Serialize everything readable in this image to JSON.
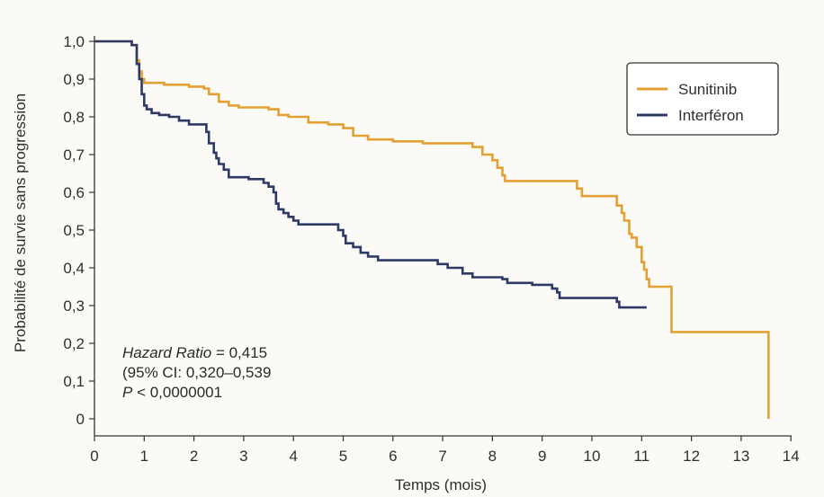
{
  "chart_data": {
    "type": "line",
    "xlabel": "Temps (mois)",
    "ylabel": "Probabilité de survie sans progression",
    "xlim": [
      0,
      14
    ],
    "ylim": [
      0,
      1
    ],
    "x_ticks": [
      0,
      1,
      2,
      3,
      4,
      5,
      6,
      7,
      8,
      9,
      10,
      11,
      12,
      13,
      14
    ],
    "x_tick_labels": [
      "0",
      "1",
      "2",
      "3",
      "4",
      "5",
      "6",
      "7",
      "8",
      "9",
      "10",
      "11",
      "12",
      "13",
      "14"
    ],
    "y_ticks": [
      0,
      0.1,
      0.2,
      0.3,
      0.4,
      0.5,
      0.6,
      0.7,
      0.8,
      0.9,
      1.0
    ],
    "y_tick_labels": [
      "0",
      "0,1",
      "0,2",
      "0,3",
      "0,4",
      "0,5",
      "0,6",
      "0,7",
      "0,8",
      "0,9",
      "1,0"
    ],
    "grid": false,
    "legend_position": "top-right",
    "series": [
      {
        "name": "Sunitinib",
        "color": "#e3a033",
        "step": true,
        "points": [
          [
            0,
            1.0
          ],
          [
            0.5,
            1.0
          ],
          [
            0.75,
            0.99
          ],
          [
            0.85,
            0.95
          ],
          [
            0.9,
            0.92
          ],
          [
            0.95,
            0.9
          ],
          [
            1.0,
            0.89
          ],
          [
            1.4,
            0.885
          ],
          [
            1.9,
            0.88
          ],
          [
            2.2,
            0.875
          ],
          [
            2.3,
            0.86
          ],
          [
            2.5,
            0.84
          ],
          [
            2.7,
            0.83
          ],
          [
            2.9,
            0.825
          ],
          [
            3.5,
            0.82
          ],
          [
            3.7,
            0.805
          ],
          [
            3.9,
            0.8
          ],
          [
            4.3,
            0.785
          ],
          [
            4.7,
            0.78
          ],
          [
            5.0,
            0.77
          ],
          [
            5.2,
            0.75
          ],
          [
            5.5,
            0.74
          ],
          [
            6.0,
            0.735
          ],
          [
            6.6,
            0.73
          ],
          [
            7.6,
            0.72
          ],
          [
            7.8,
            0.7
          ],
          [
            8.0,
            0.685
          ],
          [
            8.1,
            0.665
          ],
          [
            8.2,
            0.645
          ],
          [
            8.25,
            0.63
          ],
          [
            9.7,
            0.61
          ],
          [
            9.8,
            0.59
          ],
          [
            10.5,
            0.565
          ],
          [
            10.6,
            0.545
          ],
          [
            10.65,
            0.525
          ],
          [
            10.75,
            0.49
          ],
          [
            10.8,
            0.48
          ],
          [
            10.9,
            0.455
          ],
          [
            11.0,
            0.415
          ],
          [
            11.05,
            0.395
          ],
          [
            11.1,
            0.37
          ],
          [
            11.15,
            0.35
          ],
          [
            11.6,
            0.23
          ],
          [
            13.55,
            0.0
          ]
        ]
      },
      {
        "name": "Interféron",
        "color": "#2e3a66",
        "step": true,
        "points": [
          [
            0,
            1.0
          ],
          [
            0.5,
            1.0
          ],
          [
            0.75,
            0.99
          ],
          [
            0.85,
            0.94
          ],
          [
            0.9,
            0.9
          ],
          [
            0.95,
            0.86
          ],
          [
            1.0,
            0.83
          ],
          [
            1.05,
            0.82
          ],
          [
            1.15,
            0.81
          ],
          [
            1.3,
            0.805
          ],
          [
            1.5,
            0.8
          ],
          [
            1.7,
            0.79
          ],
          [
            1.9,
            0.78
          ],
          [
            2.25,
            0.76
          ],
          [
            2.3,
            0.73
          ],
          [
            2.4,
            0.705
          ],
          [
            2.45,
            0.69
          ],
          [
            2.5,
            0.675
          ],
          [
            2.6,
            0.66
          ],
          [
            2.7,
            0.64
          ],
          [
            3.1,
            0.635
          ],
          [
            3.4,
            0.625
          ],
          [
            3.5,
            0.615
          ],
          [
            3.6,
            0.6
          ],
          [
            3.65,
            0.57
          ],
          [
            3.7,
            0.555
          ],
          [
            3.8,
            0.545
          ],
          [
            3.9,
            0.535
          ],
          [
            4.0,
            0.525
          ],
          [
            4.1,
            0.515
          ],
          [
            4.9,
            0.5
          ],
          [
            5.0,
            0.485
          ],
          [
            5.05,
            0.465
          ],
          [
            5.2,
            0.455
          ],
          [
            5.35,
            0.44
          ],
          [
            5.5,
            0.43
          ],
          [
            5.7,
            0.42
          ],
          [
            6.9,
            0.41
          ],
          [
            7.1,
            0.4
          ],
          [
            7.4,
            0.385
          ],
          [
            7.6,
            0.375
          ],
          [
            8.2,
            0.37
          ],
          [
            8.3,
            0.36
          ],
          [
            8.8,
            0.355
          ],
          [
            9.2,
            0.345
          ],
          [
            9.3,
            0.335
          ],
          [
            9.35,
            0.32
          ],
          [
            10.5,
            0.31
          ],
          [
            10.55,
            0.295
          ],
          [
            11.1,
            0.295
          ]
        ]
      }
    ],
    "annotations": {
      "hr_label": "Hazard Ratio",
      "hr_value": " = 0,415",
      "ci": "(95% CI: 0,320–0,539",
      "p_label": "P",
      "p_value": " < 0,0000001"
    }
  }
}
